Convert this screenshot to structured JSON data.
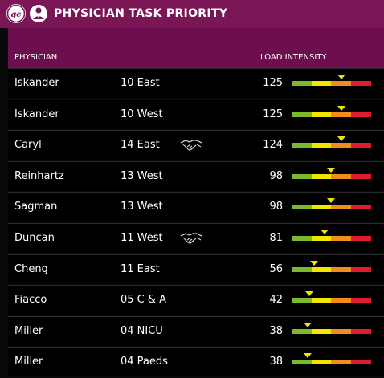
{
  "header": {
    "title": "PHYSICIAN TASK PRIORITY",
    "logo_icon": "ge-logo-icon",
    "doctor_icon": "physician-icon"
  },
  "columns": {
    "physician": "PHYSICIAN",
    "load": "LOAD INTENSITY"
  },
  "colors": {
    "header_bg": "#7a1656",
    "subheader_bg": "#6d0e4e",
    "green": "#7bb82a",
    "yellow": "#f2e600",
    "orange": "#f28c1e",
    "red": "#e01b2c"
  },
  "scale": {
    "min": 0,
    "max": 200
  },
  "rows": [
    {
      "name": "Iskander",
      "location": "10 East",
      "value": "125",
      "handoff": false,
      "level": 125
    },
    {
      "name": "Iskander",
      "location": "10 West",
      "value": "125",
      "handoff": false,
      "level": 125
    },
    {
      "name": "Caryl",
      "location": "14 East",
      "value": "124",
      "handoff": true,
      "level": 124
    },
    {
      "name": "Reinhartz",
      "location": "13 West",
      "value": "98",
      "handoff": false,
      "level": 98
    },
    {
      "name": "Sagman",
      "location": "13 West",
      "value": "98",
      "handoff": false,
      "level": 98
    },
    {
      "name": "Duncan",
      "location": "11 West",
      "value": "81",
      "handoff": true,
      "level": 81
    },
    {
      "name": "Cheng",
      "location": "11 East",
      "value": "56",
      "handoff": false,
      "level": 56
    },
    {
      "name": "Fiacco",
      "location": "05 C & A",
      "value": "42",
      "handoff": false,
      "level": 42
    },
    {
      "name": "Miller",
      "location": "04 NICU",
      "value": "38",
      "handoff": false,
      "level": 38
    },
    {
      "name": "Miller",
      "location": "04 Paeds",
      "value": "38",
      "handoff": false,
      "level": 38
    }
  ]
}
